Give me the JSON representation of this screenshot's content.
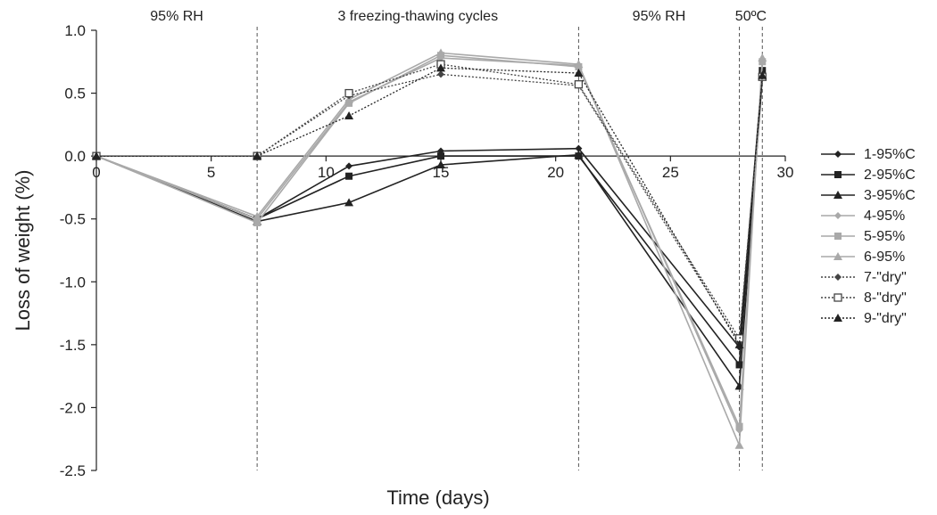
{
  "chart_data": {
    "type": "line",
    "title": "",
    "xlabel": "Time (days)",
    "ylabel": "Loss of weight (%)",
    "xlim": [
      0,
      30
    ],
    "ylim": [
      -2.5,
      1.0
    ],
    "xticks": [
      0,
      5,
      10,
      15,
      20,
      25,
      30
    ],
    "yticks": [
      1.0,
      0.5,
      0.0,
      -0.5,
      -1.0,
      -1.5,
      -2.0,
      -2.5
    ],
    "ytick_labels": [
      "1.0",
      "0.5",
      "0.0",
      "-0.5",
      "-1.0",
      "-1.5",
      "-2.0",
      "-2.5"
    ],
    "grid": false,
    "legend_position": "right",
    "phase_lines": [
      7,
      21,
      28,
      29
    ],
    "phases": [
      {
        "label": "95% RH",
        "x": 3.5
      },
      {
        "label": "3 freezing-thawing cycles",
        "x": 14
      },
      {
        "label": "95% RH",
        "x": 24.5
      },
      {
        "label": "50ºC",
        "x": 28.5
      }
    ],
    "series": [
      {
        "name": "1-95%C",
        "color": "#222222",
        "dash": "solid",
        "marker": "diamond",
        "points": [
          [
            0,
            0
          ],
          [
            7,
            -0.5
          ],
          [
            11,
            -0.08
          ],
          [
            15,
            0.04
          ],
          [
            21,
            0.06
          ],
          [
            28,
            -1.52
          ],
          [
            29,
            0.65
          ]
        ]
      },
      {
        "name": "2-95%C",
        "color": "#222222",
        "dash": "solid",
        "marker": "square",
        "points": [
          [
            0,
            0
          ],
          [
            7,
            -0.5
          ],
          [
            11,
            -0.16
          ],
          [
            15,
            0.0
          ],
          [
            21,
            0.0
          ],
          [
            28,
            -1.66
          ],
          [
            29,
            0.68
          ]
        ]
      },
      {
        "name": "3-95%C",
        "color": "#222222",
        "dash": "solid",
        "marker": "triangle",
        "points": [
          [
            0,
            0
          ],
          [
            7,
            -0.52
          ],
          [
            11,
            -0.37
          ],
          [
            15,
            -0.07
          ],
          [
            21,
            0.01
          ],
          [
            28,
            -1.83
          ],
          [
            29,
            0.63
          ]
        ]
      },
      {
        "name": "4-95%",
        "color": "#a9a9a9",
        "dash": "solid",
        "marker": "diamond",
        "points": [
          [
            0,
            0
          ],
          [
            7,
            -0.5
          ],
          [
            11,
            0.43
          ],
          [
            15,
            0.78
          ],
          [
            21,
            0.72
          ],
          [
            28,
            -2.18
          ],
          [
            29,
            0.75
          ]
        ]
      },
      {
        "name": "5-95%",
        "color": "#a9a9a9",
        "dash": "solid",
        "marker": "square",
        "points": [
          [
            0,
            0
          ],
          [
            7,
            -0.53
          ],
          [
            11,
            0.42
          ],
          [
            15,
            0.8
          ],
          [
            21,
            0.71
          ],
          [
            28,
            -2.15
          ],
          [
            29,
            0.75
          ]
        ]
      },
      {
        "name": "6-95%",
        "color": "#a9a9a9",
        "dash": "solid",
        "marker": "triangle",
        "points": [
          [
            0,
            0
          ],
          [
            7,
            -0.48
          ],
          [
            11,
            0.45
          ],
          [
            15,
            0.82
          ],
          [
            21,
            0.73
          ],
          [
            28,
            -2.3
          ],
          [
            29,
            0.78
          ]
        ]
      },
      {
        "name": "7-\"dry\"",
        "color": "#444444",
        "dash": "dotted",
        "marker": "diamond",
        "points": [
          [
            0,
            0
          ],
          [
            7,
            0.0
          ],
          [
            11,
            0.48
          ],
          [
            15,
            0.65
          ],
          [
            21,
            0.56
          ],
          [
            28,
            -1.48
          ],
          [
            29,
            0.62
          ]
        ]
      },
      {
        "name": "8-\"dry\"",
        "color": "#444444",
        "dash": "dotted",
        "marker": "square-open",
        "points": [
          [
            0,
            0
          ],
          [
            7,
            0.0
          ],
          [
            11,
            0.5
          ],
          [
            15,
            0.73
          ],
          [
            21,
            0.57
          ],
          [
            28,
            -1.45
          ],
          [
            29,
            0.63
          ]
        ]
      },
      {
        "name": "9-\"dry\"",
        "color": "#222222",
        "dash": "dotted",
        "marker": "triangle",
        "points": [
          [
            0,
            0
          ],
          [
            7,
            0.0
          ],
          [
            11,
            0.32
          ],
          [
            15,
            0.7
          ],
          [
            21,
            0.66
          ],
          [
            28,
            -1.5
          ],
          [
            29,
            0.64
          ]
        ]
      }
    ]
  }
}
